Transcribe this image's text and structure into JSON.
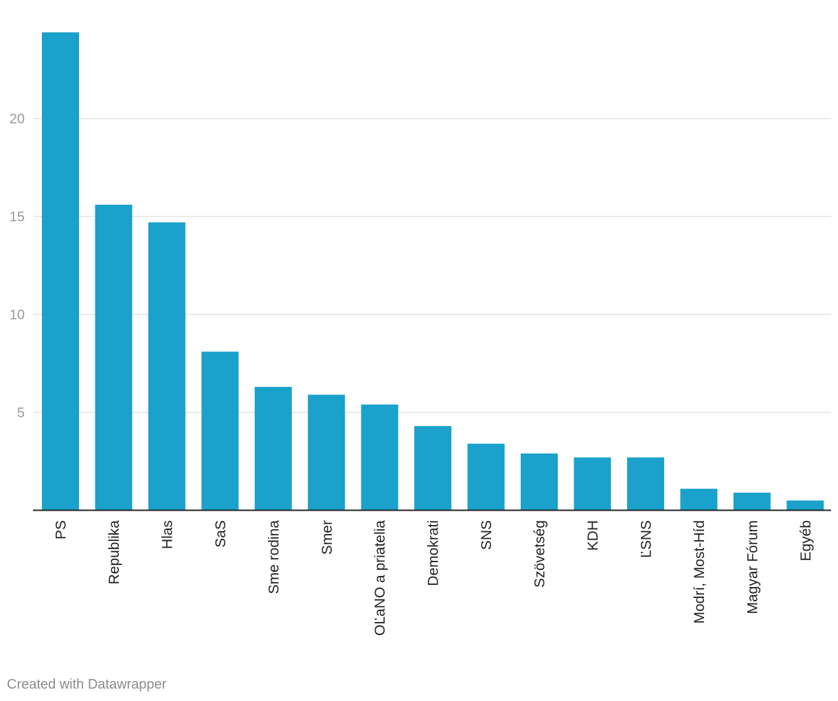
{
  "chart_data": {
    "type": "bar",
    "categories": [
      "PS",
      "Republika",
      "Hlas",
      "SaS",
      "Sme rodina",
      "Smer",
      "OĽaNO a priatelia",
      "Demokrati",
      "SNS",
      "Szövetség",
      "KDH",
      "ĽSNS",
      "Modrí, Most-Híd",
      "Magyar Fórum",
      "Egyéb"
    ],
    "values": [
      24.4,
      15.6,
      14.7,
      8.1,
      6.3,
      5.9,
      5.4,
      4.3,
      3.4,
      2.9,
      2.7,
      2.7,
      1.1,
      0.9,
      0.5
    ],
    "yticks": [
      5,
      10,
      15,
      20
    ],
    "ylim": [
      0,
      25
    ],
    "bar_color": "#1aa1cc",
    "grid": true,
    "title": "",
    "xlabel": "",
    "ylabel": ""
  },
  "footer": {
    "credit": "Created with Datawrapper"
  }
}
